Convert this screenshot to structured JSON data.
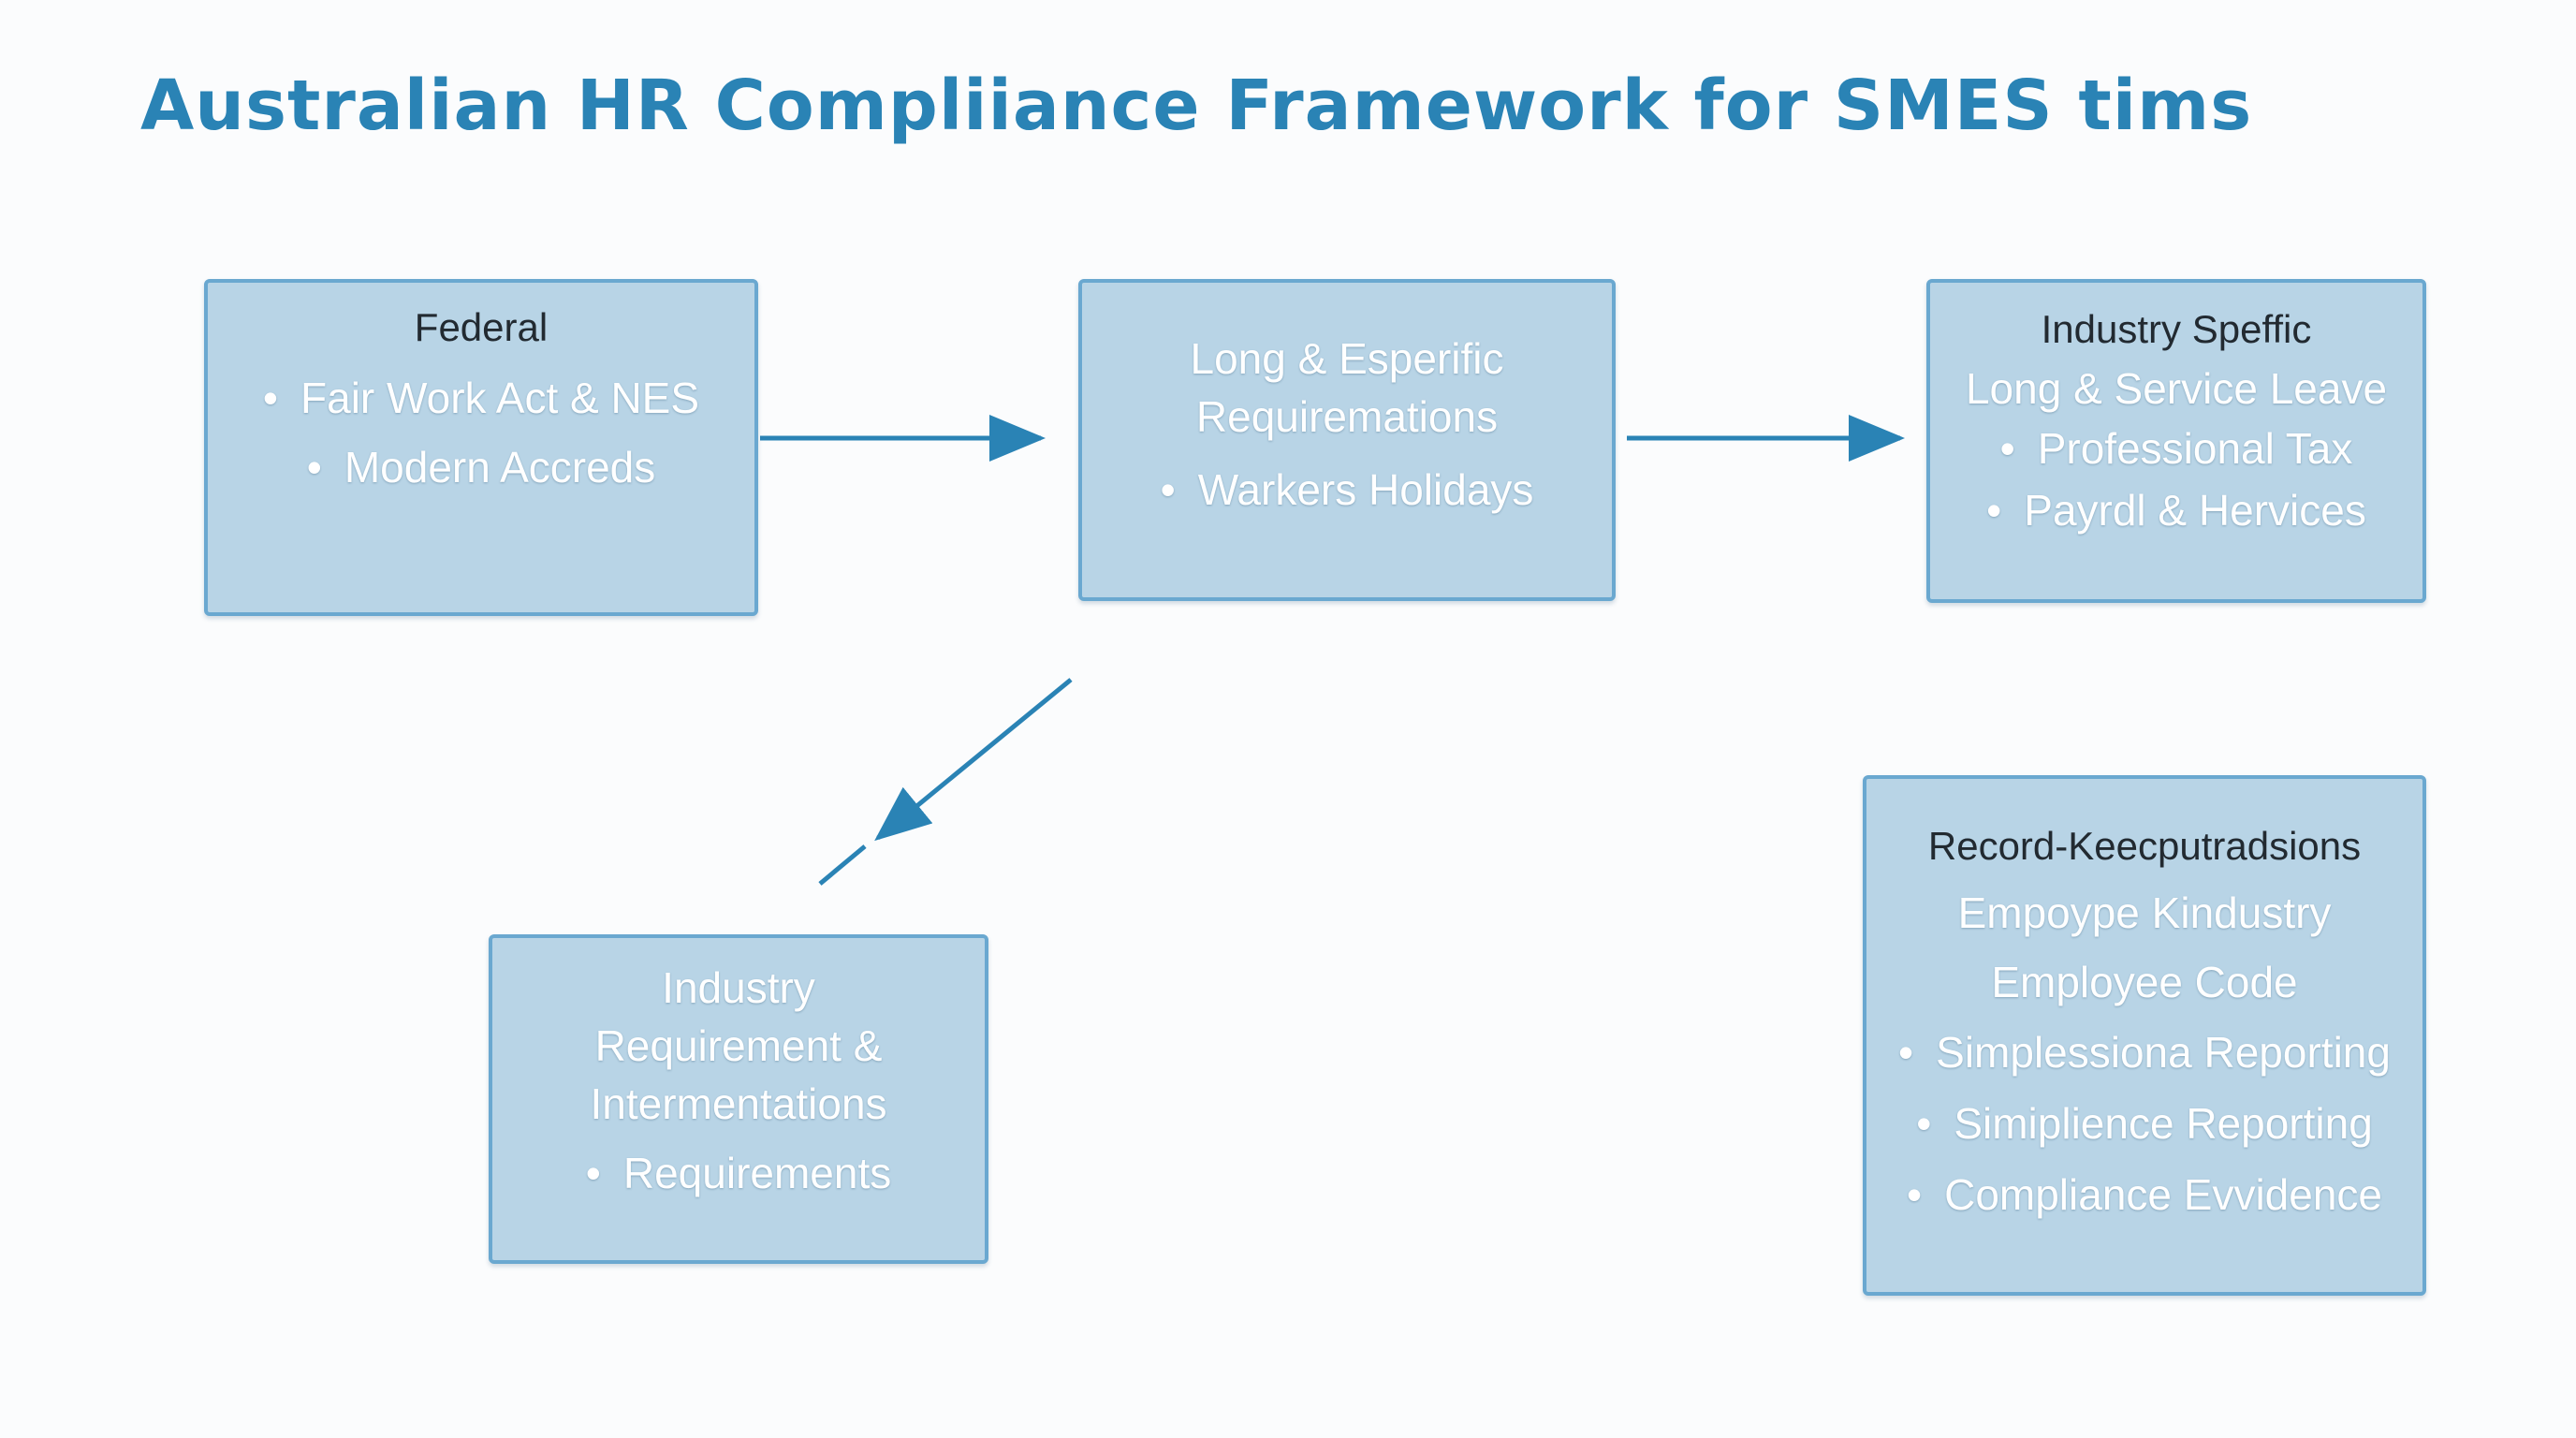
{
  "title": "Australian HR Compliiance Framework for SMES tims",
  "colors": {
    "title": "#2a83b5",
    "box_fill": "#b8d4e6",
    "box_border": "#6aa8d0",
    "arrow": "#2a83b5",
    "heading_text": "#222a31",
    "item_text": "#ffffff"
  },
  "boxes": {
    "federal": {
      "heading": "Federal",
      "bullets": [
        "Fair Work Act & NES",
        "Modern Accreds"
      ]
    },
    "long_specific": {
      "lines": [
        "Long & Esperific",
        "Requiremations"
      ],
      "bullets": [
        "Warkers Holidays"
      ]
    },
    "industry_specific": {
      "heading": "Industry Speffic",
      "lines": [
        "Long & Service Leave"
      ],
      "bullets": [
        "Professional Tax",
        "Payrdl & Hervices"
      ]
    },
    "industry_requirement": {
      "lines": [
        "Industry",
        "Requirement &",
        "Intermentations"
      ],
      "bullets": [
        "Requirements"
      ]
    },
    "record_keeping": {
      "heading": "Record-Keecputradsions",
      "lines": [
        "Empoype Kindustry",
        "Employee Code"
      ],
      "bullets": [
        "Simplessiona Reporting",
        "Simiplience Reporting",
        "Compliance Evvidence"
      ]
    }
  }
}
